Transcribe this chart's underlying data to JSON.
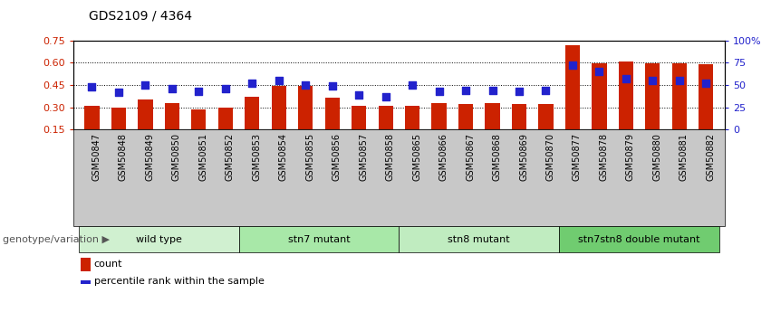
{
  "title": "GDS2109 / 4364",
  "samples": [
    "GSM50847",
    "GSM50848",
    "GSM50849",
    "GSM50850",
    "GSM50851",
    "GSM50852",
    "GSM50853",
    "GSM50854",
    "GSM50855",
    "GSM50856",
    "GSM50857",
    "GSM50858",
    "GSM50865",
    "GSM50866",
    "GSM50867",
    "GSM50868",
    "GSM50869",
    "GSM50870",
    "GSM50877",
    "GSM50878",
    "GSM50879",
    "GSM50880",
    "GSM50881",
    "GSM50882"
  ],
  "counts": [
    0.31,
    0.3,
    0.355,
    0.33,
    0.285,
    0.3,
    0.37,
    0.445,
    0.445,
    0.365,
    0.31,
    0.31,
    0.31,
    0.33,
    0.32,
    0.33,
    0.32,
    0.32,
    0.72,
    0.595,
    0.61,
    0.595,
    0.595,
    0.59
  ],
  "percentiles": [
    48,
    42,
    50,
    46,
    43,
    46,
    52,
    55,
    50,
    49,
    39,
    37,
    50,
    43,
    44,
    44,
    43,
    44,
    72,
    65,
    57,
    55,
    55,
    52
  ],
  "groups": [
    {
      "label": "wild type",
      "start": 0,
      "end": 5,
      "color": "#d0f0d0"
    },
    {
      "label": "stn7 mutant",
      "start": 6,
      "end": 11,
      "color": "#a8e8a8"
    },
    {
      "label": "stn8 mutant",
      "start": 12,
      "end": 17,
      "color": "#c0ecc0"
    },
    {
      "label": "stn7stn8 double mutant",
      "start": 18,
      "end": 23,
      "color": "#70cc70"
    }
  ],
  "bar_color": "#cc2200",
  "dot_color": "#2222cc",
  "ylim_left": [
    0.15,
    0.75
  ],
  "ylim_right": [
    0,
    100
  ],
  "yticks_left": [
    0.15,
    0.3,
    0.45,
    0.6,
    0.75
  ],
  "yticks_right": [
    0,
    25,
    50,
    75,
    100
  ],
  "ytick_labels_right": [
    "0",
    "25",
    "50",
    "75",
    "100%"
  ],
  "grid_lines": [
    0.3,
    0.45,
    0.6
  ],
  "xlabel_area_label": "genotype/variation",
  "legend_count_label": "count",
  "legend_pct_label": "percentile rank within the sample",
  "tick_label_color_left": "#cc2200",
  "tick_label_color_right": "#2222cc",
  "xtick_bg_color": "#c8c8c8",
  "bar_bottom": 0.15
}
